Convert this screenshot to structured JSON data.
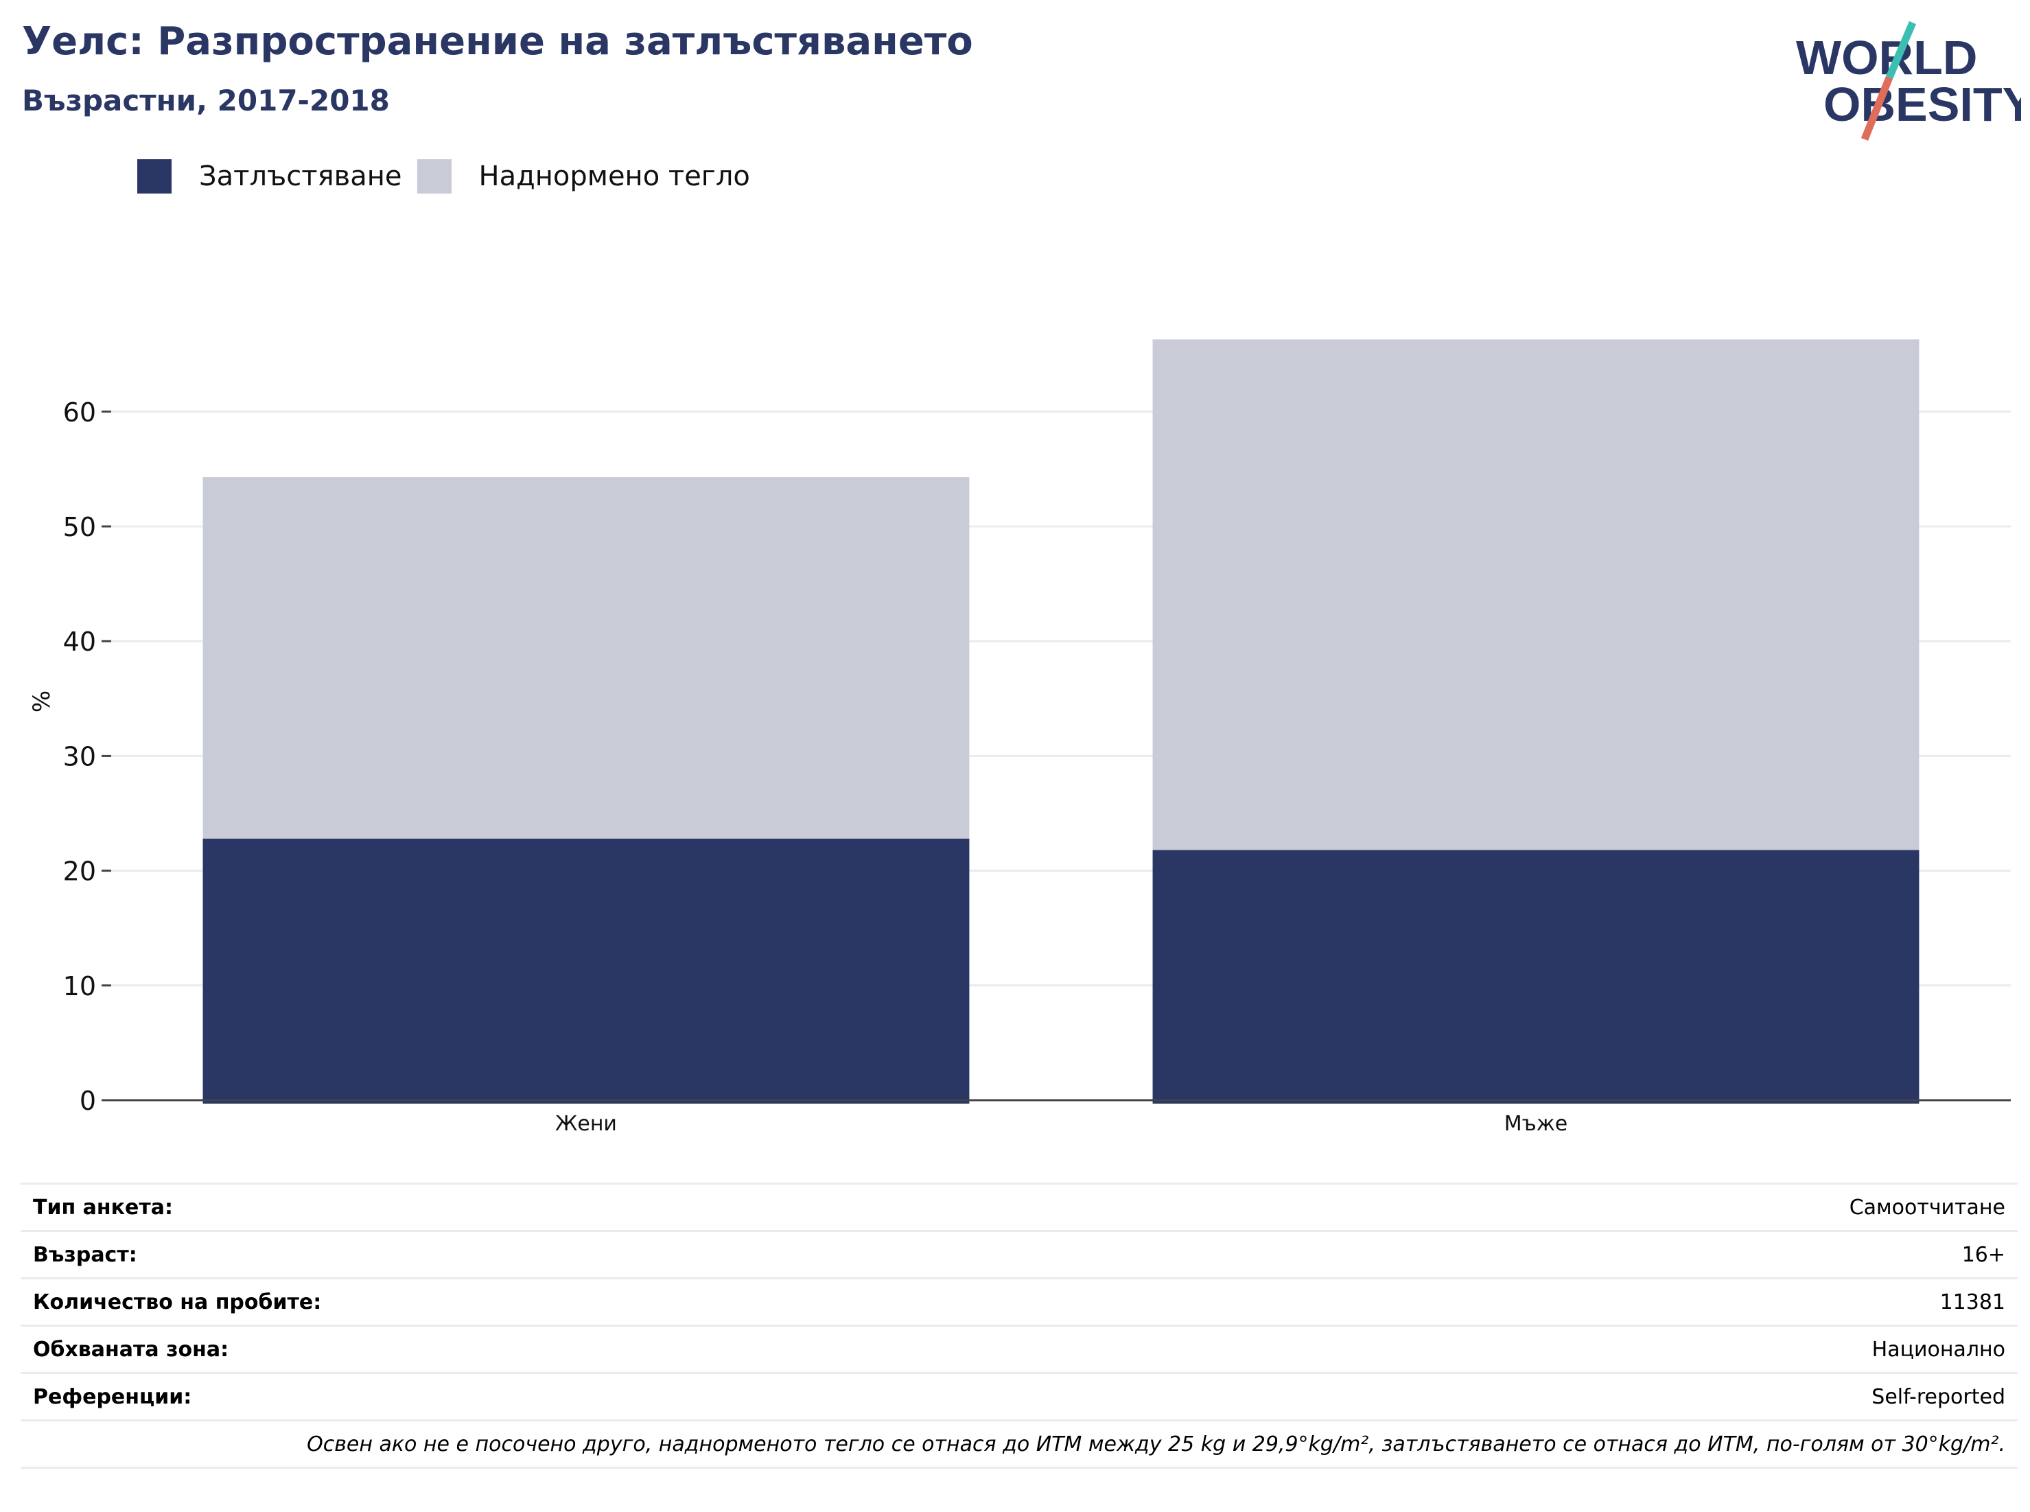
{
  "header": {
    "title": "Уелс: Разпространение на затлъстяването",
    "subtitle": "Възрастни, 2017-2018"
  },
  "logo": {
    "line1": "WORLD",
    "line2": "OBESITY",
    "colors": {
      "text": "#2a3663",
      "slash_top": "#3bbfb3",
      "slash_bottom": "#e06c5a"
    }
  },
  "legend": [
    {
      "label": "Затлъстяване",
      "color": "#2a3663"
    },
    {
      "label": "Наднормено тегло",
      "color": "#c9cbd7"
    }
  ],
  "chart_data": {
    "type": "bar",
    "stacked": true,
    "categories": [
      "Жени",
      "Мъже"
    ],
    "series": [
      {
        "name": "Затлъстяване",
        "color": "#2a3663",
        "values": [
          22.8,
          21.8
        ]
      },
      {
        "name": "Наднормено тегло",
        "color": "#c9cbd7",
        "values": [
          31.5,
          44.5
        ]
      }
    ],
    "ylabel": "%",
    "yticks": [
      0,
      10,
      20,
      30,
      40,
      50,
      60
    ],
    "ylim": [
      0,
      68
    ],
    "grid": true,
    "legend_position": "top-left"
  },
  "info": {
    "rows": [
      {
        "key": "Тип анкета:",
        "value": "Самоотчитане"
      },
      {
        "key": "Възраст:",
        "value": "16+"
      },
      {
        "key": "Количество на пробите:",
        "value": "11381"
      },
      {
        "key": "Обхваната зона:",
        "value": "Национално"
      },
      {
        "key": "Референции:",
        "value": "Self-reported"
      }
    ],
    "footnote": "Освен ако не е посочено друго, наднорменото тегло се отнася до ИТМ между 25 kg и 29,9°kg/m², затлъстяването се отнася до ИТМ, по-голям от 30°kg/m²."
  }
}
